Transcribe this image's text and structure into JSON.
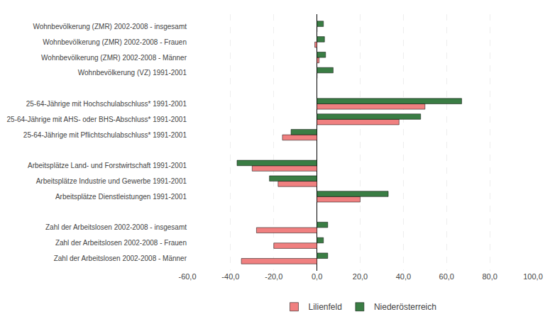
{
  "chart_data": {
    "type": "bar",
    "orientation": "horizontal",
    "categories": [
      "Wohnbevölkerung (ZMR) 2002-2008 - insgesamt",
      "Wohnbevölkerung (ZMR) 2002-2008 - Frauen",
      "Wohnbevölkerung (ZMR) 2002-2008 - Männer",
      "Wohnbevölkerung (VZ) 1991-2001",
      null,
      "25-64-Jährige mit Hochschulabschluss* 1991-2001",
      "25-64-Jährige mit AHS- oder BHS-Abschluss* 1991-2001",
      "25-64-Jährige mit Pflichtschulabschluss* 1991-2001",
      null,
      "Arbeitsplätze Land- und Forstwirtschaft 1991-2001",
      "Arbeitsplätze Industrie und Gewerbe 1991-2001",
      "Arbeitsplätze Dienstleistungen 1991-2001",
      null,
      "Zahl der Arbeitslosen 2002-2008 - insgesamt",
      "Zahl der Arbeitslosen 2002-2008 - Frauen",
      "Zahl der Arbeitslosen 2002-2008 - Männer"
    ],
    "series": [
      {
        "name": "Lilienfeld",
        "color": "#f08080",
        "values": [
          0.0,
          -1.0,
          1.0,
          0.0,
          null,
          50.0,
          38.0,
          -16.0,
          null,
          -30.0,
          -18.0,
          20.0,
          null,
          -28.0,
          -20.0,
          -35.0
        ]
      },
      {
        "name": "Niederösterreich",
        "color": "#3a7d44",
        "values": [
          3.0,
          3.5,
          4.0,
          7.5,
          null,
          67.0,
          48.0,
          -12.0,
          null,
          -37.0,
          -22.0,
          33.0,
          null,
          5.0,
          3.0,
          5.0
        ]
      }
    ],
    "xlim": [
      -60,
      100
    ],
    "xticks": [
      {
        "value": -60,
        "label": "-60,0"
      },
      {
        "value": -40,
        "label": "-40,0"
      },
      {
        "value": -20,
        "label": "-20,0"
      },
      {
        "value": 0,
        "label": "0,0"
      },
      {
        "value": 20,
        "label": "20,0"
      },
      {
        "value": 40,
        "label": "40,0"
      },
      {
        "value": 60,
        "label": "60,0"
      },
      {
        "value": 80,
        "label": "80,0"
      },
      {
        "value": 100,
        "label": "100,0"
      }
    ],
    "grid": true,
    "legend": "bottom"
  }
}
